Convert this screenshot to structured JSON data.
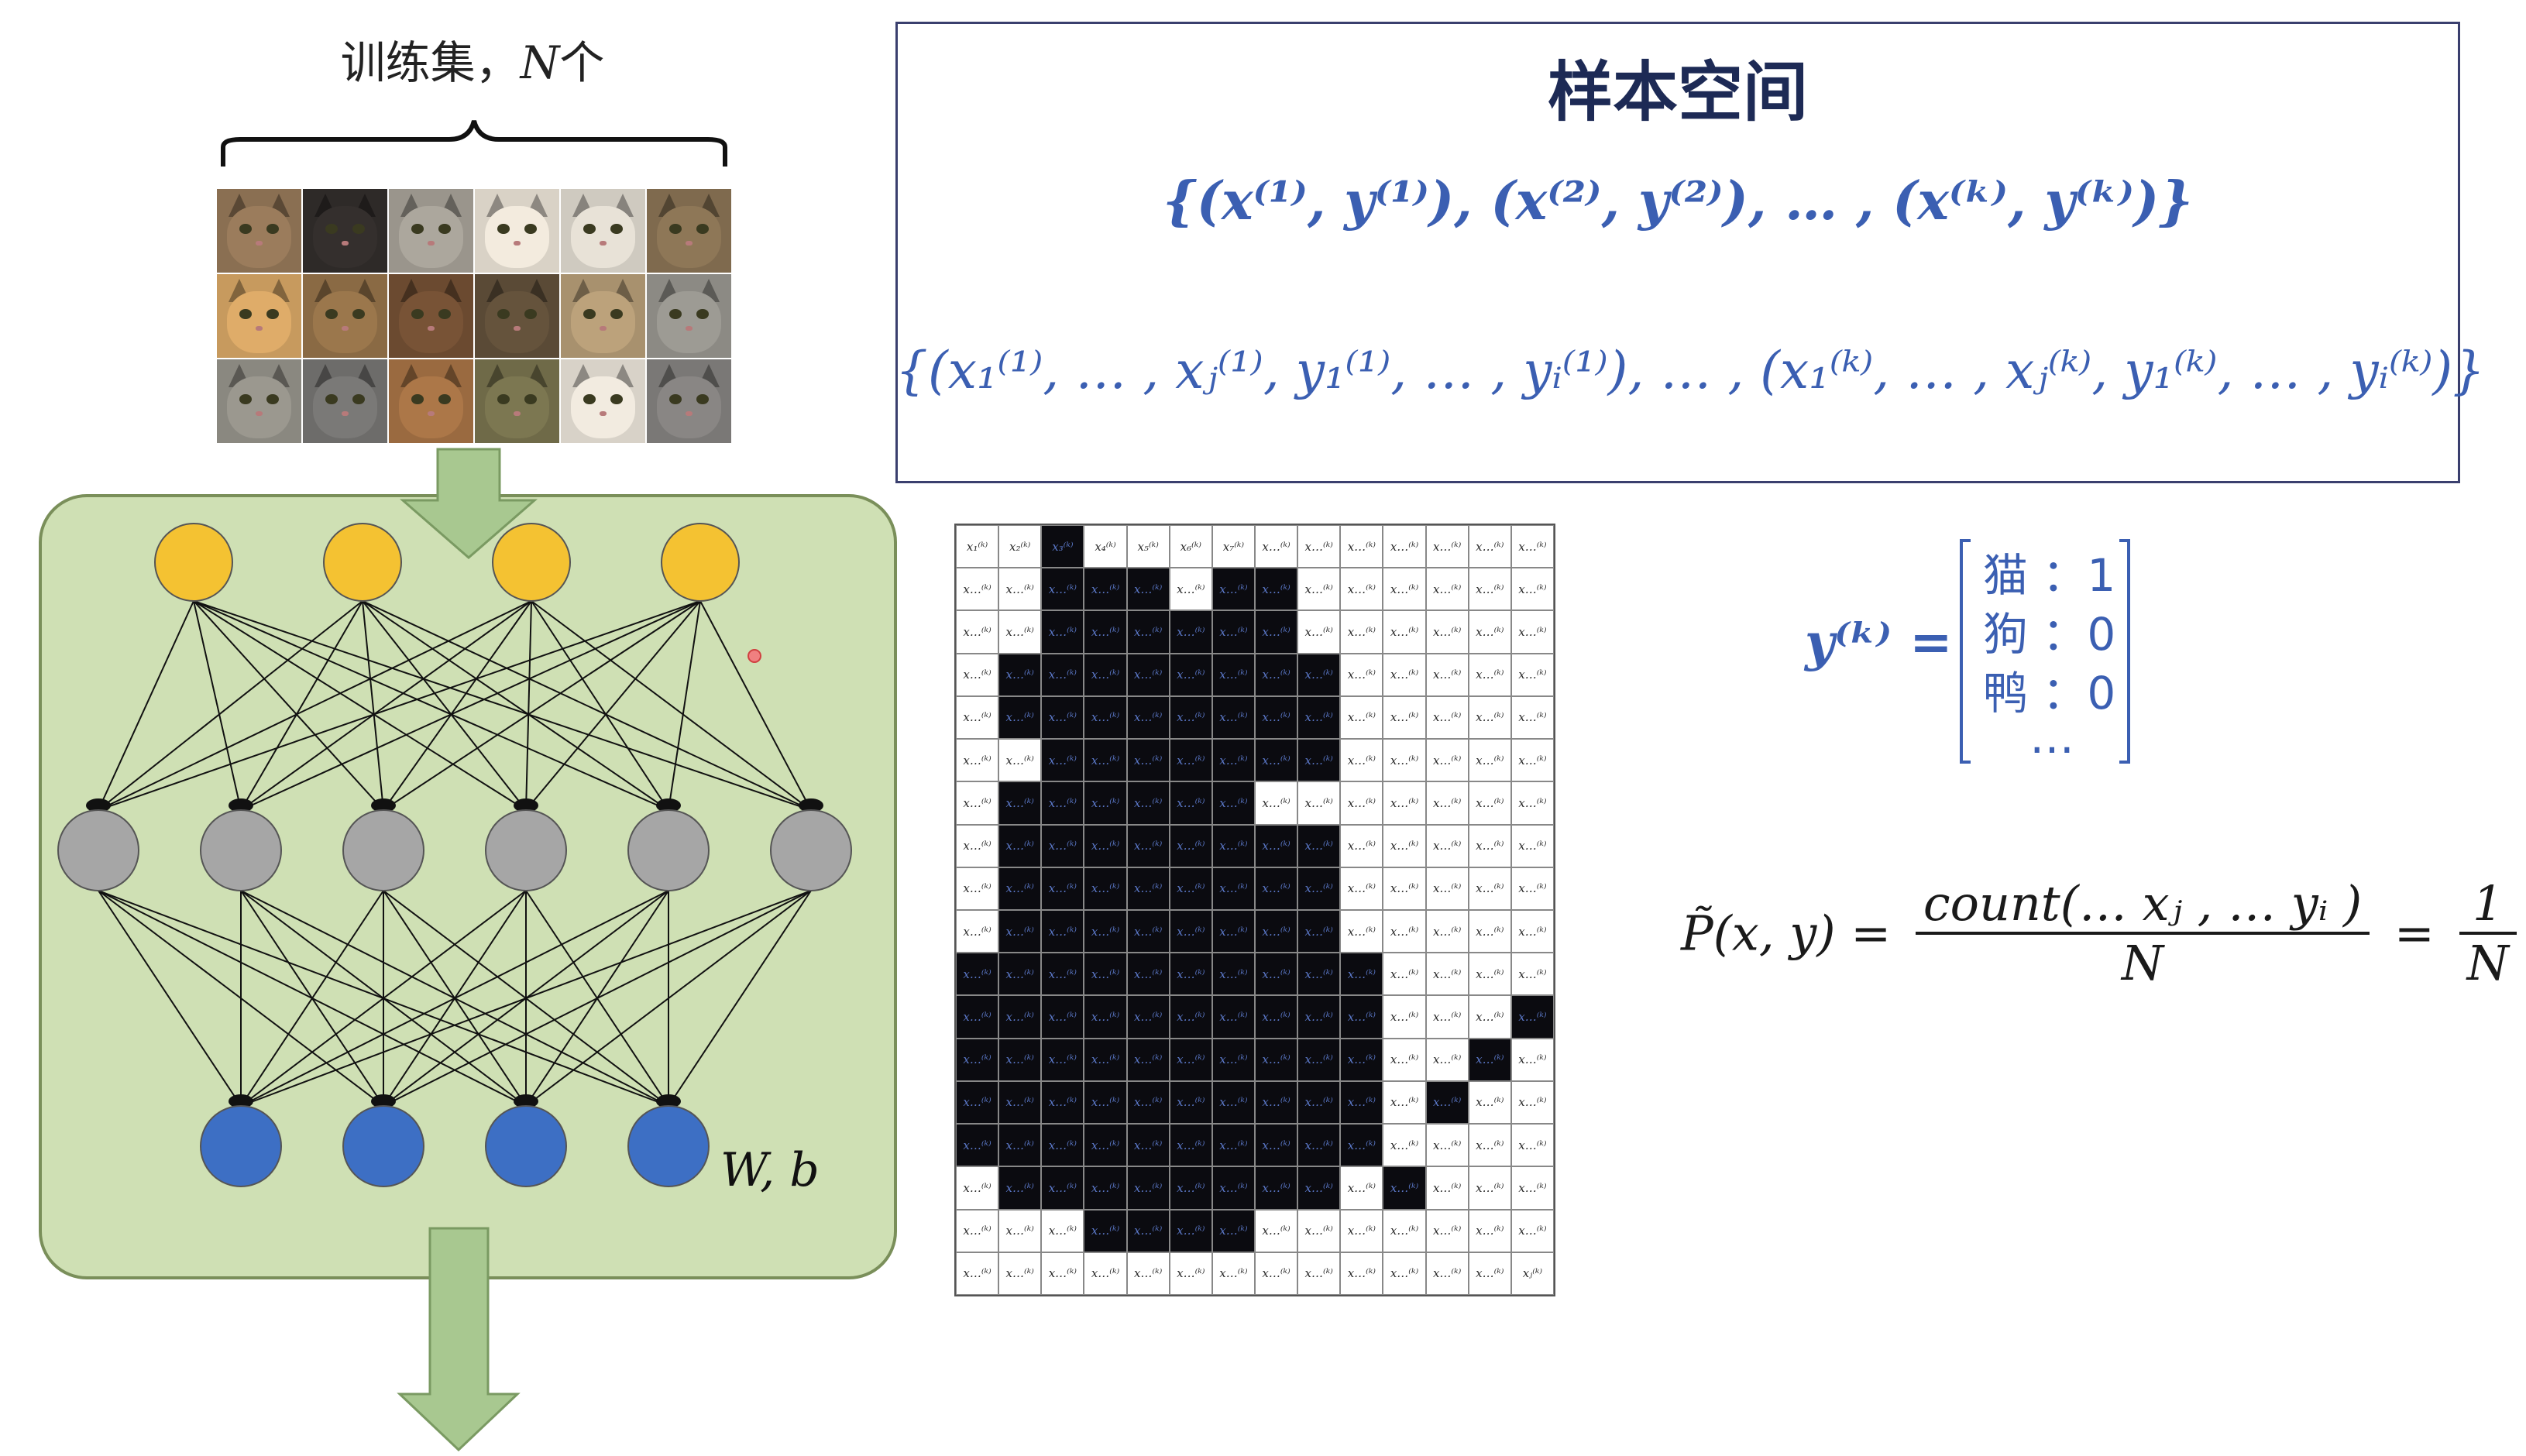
{
  "training_set": {
    "title_prefix": "训练集，",
    "title_n": "N",
    "title_suffix": "个"
  },
  "sample_space": {
    "title": "样本空间",
    "vector_set": "{(x⁽¹⁾, y⁽¹⁾), (x⁽²⁾, y⁽²⁾), … , (x⁽ᵏ⁾, y⁽ᵏ⁾)}",
    "component_set": "{(x₁⁽¹⁾, … , xⱼ⁽¹⁾, y₁⁽¹⁾, … , yᵢ⁽¹⁾), … , (x₁⁽ᵏ⁾, … , xⱼ⁽ᵏ⁾, y₁⁽ᵏ⁾, … , yᵢ⁽ᵏ⁾)}"
  },
  "network": {
    "layers": [
      4,
      6,
      4
    ],
    "colors": {
      "input": "#f4c232",
      "hidden": "#a6a6a6",
      "output": "#3d6fc4",
      "panel": "#cfe0b4",
      "panel_border": "#7a8f5a",
      "arrow": "#a8c890"
    },
    "params_label": "W, b"
  },
  "pixel_grid": {
    "rows": 18,
    "cols": 14,
    "first_row_labels": [
      "x₁⁽ᵏ⁾",
      "x₂⁽ᵏ⁾",
      "x₃⁽ᵏ⁾",
      "x₄⁽ᵏ⁾",
      "x₅⁽ᵏ⁾",
      "x₆⁽ᵏ⁾",
      "x₇⁽ᵏ⁾"
    ],
    "generic_label": "x…⁽ᵏ⁾",
    "last_label": "xⱼ⁽ᵏ⁾",
    "mask": [
      "00100000000000",
      "00111011000000",
      "00111111000000",
      "01111111100000",
      "01111111100000",
      "00111111100000",
      "01111110000000",
      "01111111100000",
      "01111111100000",
      "01111111100000",
      "11111111110000",
      "11111111110001",
      "11111111110010",
      "11111111110100",
      "11111111110000",
      "01111111101000",
      "00011110000000",
      "00000000000000"
    ]
  },
  "label_vector": {
    "name": "y⁽ᵏ⁾ =",
    "rows": [
      "猫 ：1",
      "狗 ：0",
      "鸭 ：0",
      "…"
    ]
  },
  "probability": {
    "lhs": "P̃(x, y) =",
    "numerator": "count(… xⱼ , … yᵢ )",
    "denominator": "N",
    "equals": "=",
    "num2": "1",
    "den2": "N"
  }
}
